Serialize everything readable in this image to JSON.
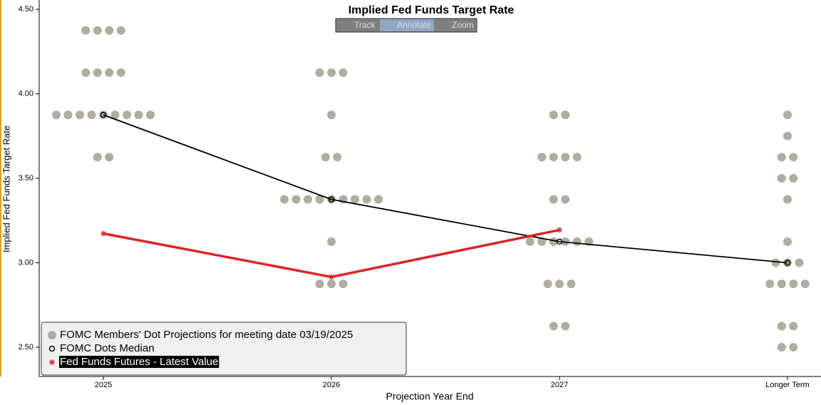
{
  "chart_data": {
    "type": "dot_plot",
    "title": "Implied Fed Funds Target Rate",
    "toolbar": [
      "Track",
      "Annotate",
      "Zoom"
    ],
    "y_label": "Implied Fed Funds Target Rate",
    "x_label": "Projection Year End",
    "categories": [
      "2025",
      "2026",
      "2027",
      "Longer Term"
    ],
    "ylim": [
      2.327,
      4.555
    ],
    "yticks": [
      {
        "value": 2.5,
        "label": "2.50"
      },
      {
        "value": 3.0,
        "label": "3.00"
      },
      {
        "value": 3.5,
        "label": "3.50"
      },
      {
        "value": 4.0,
        "label": "4.00"
      },
      {
        "value": 4.5,
        "label": "4.50"
      }
    ],
    "series": [
      {
        "name": "FOMC Members' Dot Projections for meeting date 03/19/2025",
        "color": "#b0aca0",
        "values": [
          [
            4.375,
            4.375,
            4.375,
            4.375,
            4.125,
            4.125,
            4.125,
            4.125,
            3.875,
            3.875,
            3.875,
            3.875,
            3.875,
            3.875,
            3.875,
            3.875,
            3.875,
            3.625,
            3.625
          ],
          [
            4.125,
            4.125,
            4.125,
            3.875,
            3.625,
            3.625,
            3.375,
            3.375,
            3.375,
            3.375,
            3.375,
            3.375,
            3.375,
            3.375,
            3.375,
            3.125,
            2.875,
            2.875,
            2.875
          ],
          [
            3.875,
            3.875,
            3.625,
            3.625,
            3.625,
            3.625,
            3.375,
            3.375,
            3.125,
            3.125,
            3.125,
            3.125,
            3.125,
            3.125,
            2.875,
            2.875,
            2.875,
            2.625,
            2.625
          ],
          [
            3.875,
            3.75,
            3.625,
            3.625,
            3.5,
            3.5,
            3.375,
            3.125,
            3.0,
            3.0,
            3.0,
            2.875,
            2.875,
            2.875,
            2.875,
            2.625,
            2.625,
            2.5,
            2.5
          ]
        ]
      },
      {
        "name": "FOMC Dots Median",
        "color": "#000000",
        "values": [
          3.875,
          3.375,
          3.125,
          3.0
        ]
      },
      {
        "name": "Fed Funds Futures - Latest Value",
        "color": "#d9252b",
        "values": [
          3.173,
          2.916,
          3.194,
          null
        ]
      }
    ]
  }
}
